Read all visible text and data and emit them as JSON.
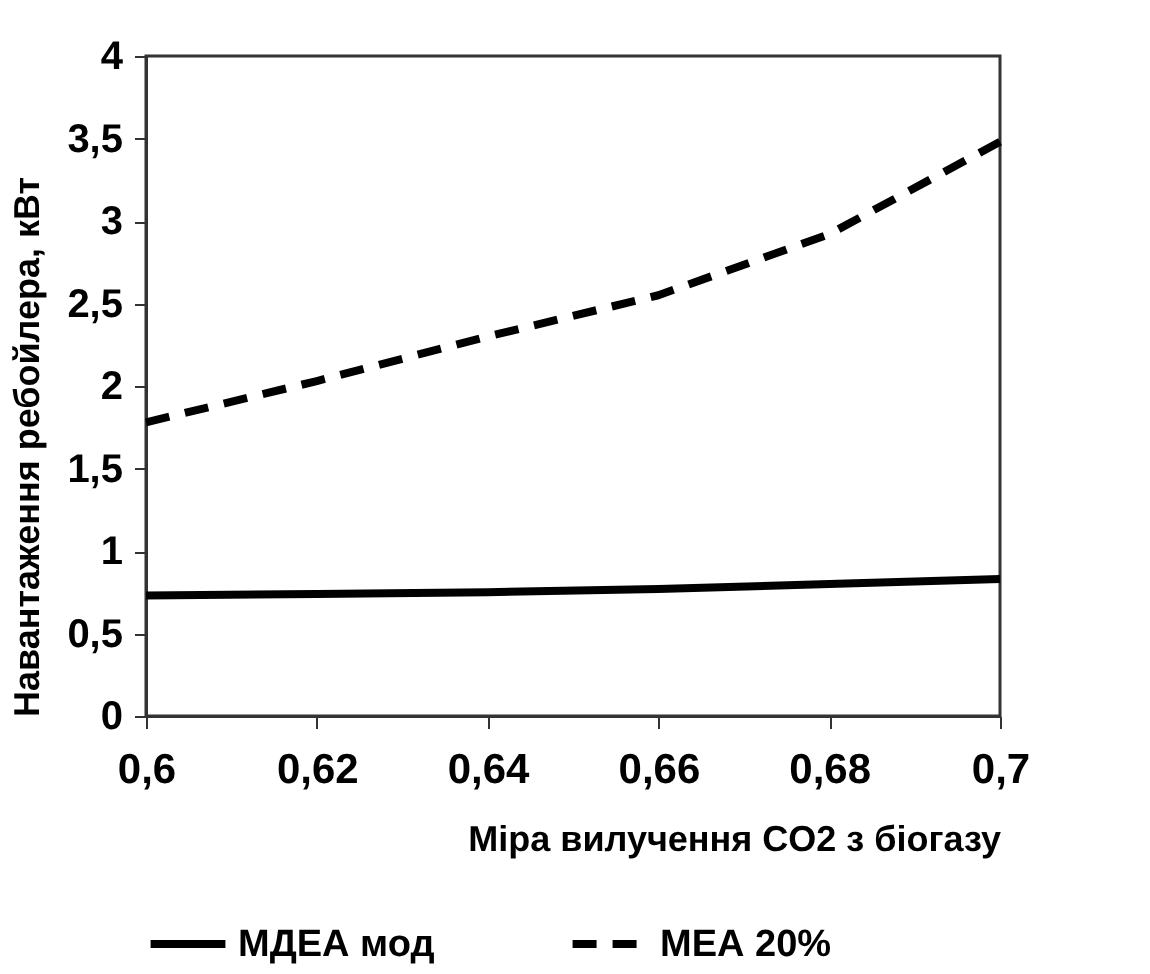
{
  "chart_data": {
    "type": "line",
    "xlabel": "Міра вилучення CO2 з біогазу",
    "ylabel": "Навантаження ребойлера, кВт",
    "x": [
      0.6,
      0.62,
      0.64,
      0.66,
      0.68,
      0.7
    ],
    "series": [
      {
        "name": "МДЕА мод",
        "color": "#000000",
        "line_style": "solid",
        "values": [
          0.73,
          0.74,
          0.75,
          0.77,
          0.8,
          0.83
        ]
      },
      {
        "name": "МЕА 20%",
        "color": "#000000",
        "line_style": "dashed",
        "values": [
          1.78,
          2.03,
          2.3,
          2.55,
          2.92,
          3.48
        ]
      }
    ],
    "xlim": [
      0.6,
      0.7
    ],
    "xticks": [
      {
        "value": 0.6,
        "label": "0,6"
      },
      {
        "value": 0.62,
        "label": "0,62"
      },
      {
        "value": 0.64,
        "label": "0,64"
      },
      {
        "value": 0.66,
        "label": "0,66"
      },
      {
        "value": 0.68,
        "label": "0,68"
      },
      {
        "value": 0.7,
        "label": "0,7"
      }
    ],
    "ylim": [
      0,
      4
    ],
    "yticks": [
      0,
      {
        "value": 0.5,
        "label": "0,5"
      },
      1,
      {
        "value": 1.5,
        "label": "1,5"
      },
      2,
      {
        "value": 2.5,
        "label": "2,5"
      },
      3,
      {
        "value": 3.5,
        "label": "3,5"
      },
      4
    ],
    "grid": false,
    "legend": "bottom",
    "marker": "none"
  }
}
